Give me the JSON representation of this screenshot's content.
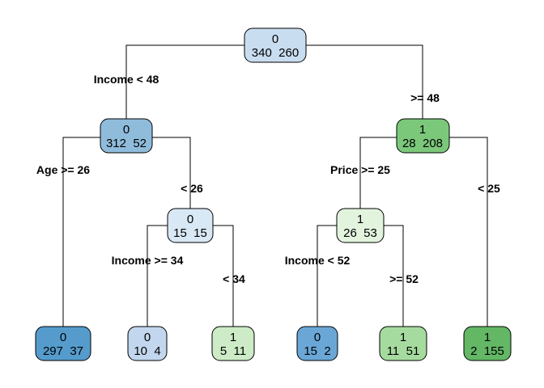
{
  "nodes": [
    {
      "id": "n1",
      "class": "0",
      "counts": "340  260",
      "fill": "#c9ddf0"
    },
    {
      "id": "n2",
      "class": "0",
      "counts": "312  52",
      "fill": "#90bcdc"
    },
    {
      "id": "n3",
      "class": "1",
      "counts": "28  208",
      "fill": "#7cc87b"
    },
    {
      "id": "n4",
      "class": "0",
      "counts": "297  37",
      "fill": "#559ccd"
    },
    {
      "id": "n5",
      "class": "0",
      "counts": "15  15",
      "fill": "#d9e8f5"
    },
    {
      "id": "n6",
      "class": "1",
      "counts": "26  53",
      "fill": "#e2f3de"
    },
    {
      "id": "n7",
      "class": "1",
      "counts": "2  155",
      "fill": "#63b765"
    },
    {
      "id": "n8",
      "class": "0",
      "counts": "10  4",
      "fill": "#c2d7ed"
    },
    {
      "id": "n9",
      "class": "1",
      "counts": "5  11",
      "fill": "#ccebc6"
    },
    {
      "id": "n10",
      "class": "0",
      "counts": "15  2",
      "fill": "#6aa7d6"
    },
    {
      "id": "n11",
      "class": "1",
      "counts": "11  51",
      "fill": "#a6db9f"
    }
  ],
  "splits": {
    "root_left": "Income < 48",
    "root_right": ">= 48",
    "n2_left": "Age >= 26",
    "n2_right": "< 26",
    "n3_left": "Price >= 25",
    "n3_right": "< 25",
    "n5_left": "Income >= 34",
    "n5_right": "< 34",
    "n6_left": "Income < 52",
    "n6_right": ">= 52"
  }
}
